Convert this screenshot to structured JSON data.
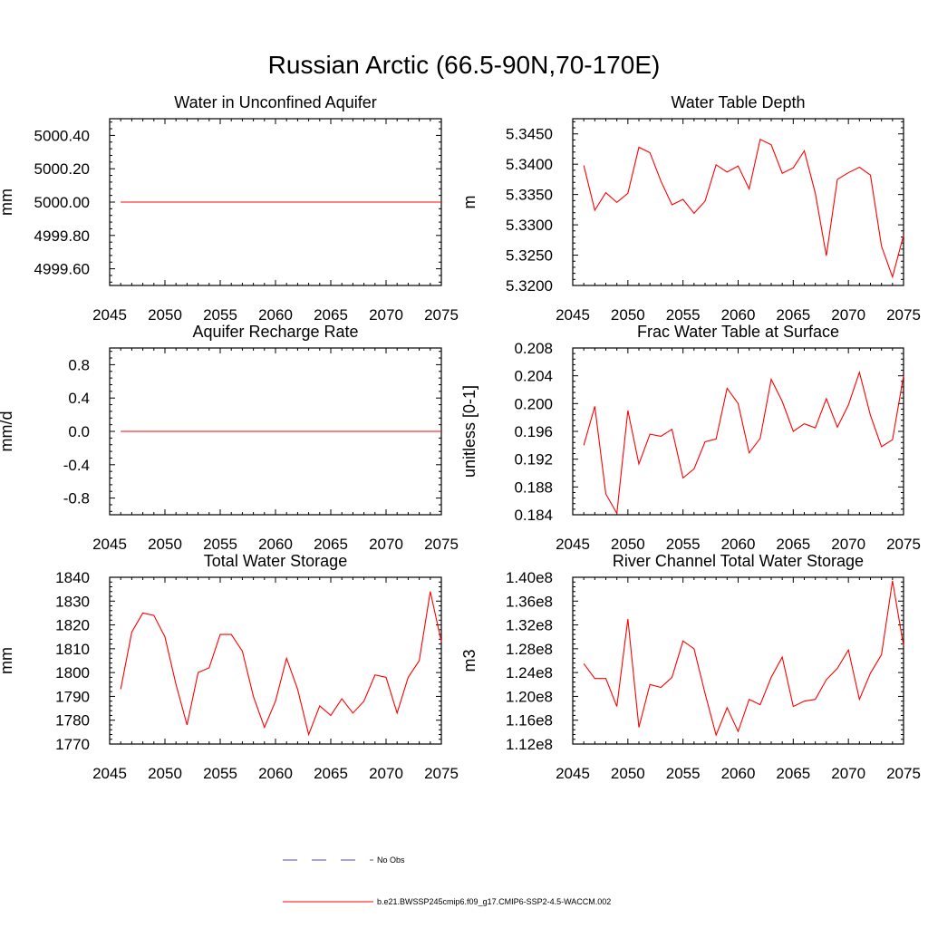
{
  "figure_title": "Russian Arctic (66.5-90N,70-170E)",
  "chart_data": [
    {
      "type": "line",
      "title": "Water in Unconfined Aquifer",
      "ylabel": "mm",
      "xlim": [
        2045,
        2075
      ],
      "ylim": [
        4999.5,
        5000.5
      ],
      "xticks": [
        2045,
        2050,
        2055,
        2060,
        2065,
        2070,
        2075
      ],
      "yticks": [
        4999.6,
        4999.8,
        5000.0,
        5000.2,
        5000.4
      ],
      "ytick_labels": [
        "4999.60",
        "4999.80",
        "5000.00",
        "5000.20",
        "5000.40"
      ],
      "x": [
        2046,
        2047,
        2048,
        2049,
        2050,
        2051,
        2052,
        2053,
        2054,
        2055,
        2056,
        2057,
        2058,
        2059,
        2060,
        2061,
        2062,
        2063,
        2064,
        2065,
        2066,
        2067,
        2068,
        2069,
        2070,
        2071,
        2072,
        2073,
        2074,
        2075
      ],
      "series": [
        {
          "name": "b.e21.BWSSP245cmip6.f09_g17.CMIP6-SSP2-4.5-WACCM.002",
          "color": "#ff0000",
          "values": [
            5000,
            5000,
            5000,
            5000,
            5000,
            5000,
            5000,
            5000,
            5000,
            5000,
            5000,
            5000,
            5000,
            5000,
            5000,
            5000,
            5000,
            5000,
            5000,
            5000,
            5000,
            5000,
            5000,
            5000,
            5000,
            5000,
            5000,
            5000,
            5000,
            5000
          ]
        }
      ]
    },
    {
      "type": "line",
      "title": "Water Table Depth",
      "ylabel": "m",
      "xlim": [
        2045,
        2075
      ],
      "ylim": [
        5.32,
        5.3475
      ],
      "xticks": [
        2045,
        2050,
        2055,
        2060,
        2065,
        2070,
        2075
      ],
      "yticks": [
        5.32,
        5.325,
        5.33,
        5.335,
        5.34,
        5.345
      ],
      "ytick_labels": [
        "5.3200",
        "5.3250",
        "5.3300",
        "5.3350",
        "5.3400",
        "5.3450"
      ],
      "x": [
        2046,
        2047,
        2048,
        2049,
        2050,
        2051,
        2052,
        2053,
        2054,
        2055,
        2056,
        2057,
        2058,
        2059,
        2060,
        2061,
        2062,
        2063,
        2064,
        2065,
        2066,
        2067,
        2068,
        2069,
        2070,
        2071,
        2072,
        2073,
        2074,
        2075
      ],
      "series": [
        {
          "name": "b.e21.BWSSP245cmip6.f09_g17.CMIP6-SSP2-4.5-WACCM.002",
          "color": "#ff0000",
          "values": [
            5.3398,
            5.3324,
            5.3353,
            5.3337,
            5.3352,
            5.3428,
            5.3419,
            5.3372,
            5.3333,
            5.3342,
            5.3319,
            5.3339,
            5.3399,
            5.3387,
            5.3397,
            5.3359,
            5.3441,
            5.3432,
            5.3385,
            5.3394,
            5.3422,
            5.3352,
            5.3249,
            5.3375,
            5.3386,
            5.3395,
            5.3382,
            5.3265,
            5.3214,
            5.3283
          ]
        }
      ]
    },
    {
      "type": "line",
      "title": "Aquifer Recharge Rate",
      "ylabel": "mm/d",
      "xlim": [
        2045,
        2075
      ],
      "ylim": [
        -1.0,
        1.0
      ],
      "xticks": [
        2045,
        2050,
        2055,
        2060,
        2065,
        2070,
        2075
      ],
      "yticks": [
        -0.8,
        -0.4,
        0.0,
        0.4,
        0.8
      ],
      "ytick_labels": [
        "-0.8",
        "-0.4",
        "0.0",
        "0.4",
        "0.8"
      ],
      "x": [
        2046,
        2047,
        2048,
        2049,
        2050,
        2051,
        2052,
        2053,
        2054,
        2055,
        2056,
        2057,
        2058,
        2059,
        2060,
        2061,
        2062,
        2063,
        2064,
        2065,
        2066,
        2067,
        2068,
        2069,
        2070,
        2071,
        2072,
        2073,
        2074,
        2075
      ],
      "series": [
        {
          "name": "b.e21.BWSSP245cmip6.f09_g17.CMIP6-SSP2-4.5-WACCM.002",
          "color": "#ff0000",
          "values": [
            0,
            0,
            0,
            0,
            0,
            0,
            0,
            0,
            0,
            0,
            0,
            0,
            0,
            0,
            0,
            0,
            0,
            0,
            0,
            0,
            0,
            0,
            0,
            0,
            0,
            0,
            0,
            0,
            0,
            0
          ]
        }
      ]
    },
    {
      "type": "line",
      "title": "Frac Water Table at Surface",
      "ylabel": "unitless [0-1]",
      "xlim": [
        2045,
        2075
      ],
      "ylim": [
        0.184,
        0.208
      ],
      "xticks": [
        2045,
        2050,
        2055,
        2060,
        2065,
        2070,
        2075
      ],
      "yticks": [
        0.184,
        0.188,
        0.192,
        0.196,
        0.2,
        0.204,
        0.208
      ],
      "ytick_labels": [
        "0.184",
        "0.188",
        "0.192",
        "0.196",
        "0.200",
        "0.204",
        "0.208"
      ],
      "x": [
        2046,
        2047,
        2048,
        2049,
        2050,
        2051,
        2052,
        2053,
        2054,
        2055,
        2056,
        2057,
        2058,
        2059,
        2060,
        2061,
        2062,
        2063,
        2064,
        2065,
        2066,
        2067,
        2068,
        2069,
        2070,
        2071,
        2072,
        2073,
        2074,
        2075
      ],
      "series": [
        {
          "name": "b.e21.BWSSP245cmip6.f09_g17.CMIP6-SSP2-4.5-WACCM.002",
          "color": "#ff0000",
          "values": [
            0.194,
            0.1996,
            0.187,
            0.1842,
            0.199,
            0.1913,
            0.1956,
            0.1953,
            0.1963,
            0.1893,
            0.1906,
            0.1945,
            0.1949,
            0.2022,
            0.2,
            0.1929,
            0.195,
            0.2035,
            0.2003,
            0.196,
            0.1971,
            0.1965,
            0.2007,
            0.1966,
            0.1998,
            0.2045,
            0.1983,
            0.1938,
            0.1948,
            0.204
          ]
        }
      ]
    },
    {
      "type": "line",
      "title": "Total Water Storage",
      "ylabel": "mm",
      "xlim": [
        2045,
        2075
      ],
      "ylim": [
        1770,
        1840
      ],
      "xticks": [
        2045,
        2050,
        2055,
        2060,
        2065,
        2070,
        2075
      ],
      "yticks": [
        1770,
        1780,
        1790,
        1800,
        1810,
        1820,
        1830,
        1840
      ],
      "ytick_labels": [
        "1770",
        "1780",
        "1790",
        "1800",
        "1810",
        "1820",
        "1830",
        "1840"
      ],
      "x": [
        2046,
        2047,
        2048,
        2049,
        2050,
        2051,
        2052,
        2053,
        2054,
        2055,
        2056,
        2057,
        2058,
        2059,
        2060,
        2061,
        2062,
        2063,
        2064,
        2065,
        2066,
        2067,
        2068,
        2069,
        2070,
        2071,
        2072,
        2073,
        2074,
        2075
      ],
      "series": [
        {
          "name": "b.e21.BWSSP245cmip6.f09_g17.CMIP6-SSP2-4.5-WACCM.002",
          "color": "#ff0000",
          "values": [
            1793,
            1817,
            1825,
            1824,
            1815,
            1795,
            1778,
            1800,
            1802,
            1816,
            1816,
            1809,
            1790,
            1777,
            1788,
            1806,
            1793,
            1774,
            1786,
            1782,
            1789,
            1783,
            1788,
            1799,
            1798,
            1783,
            1798,
            1805,
            1834,
            1813
          ]
        }
      ]
    },
    {
      "type": "line",
      "title": "River Channel Total Water Storage",
      "ylabel": "m3",
      "xlim": [
        2045,
        2075
      ],
      "ylim": [
        112000000,
        140000000
      ],
      "xticks": [
        2045,
        2050,
        2055,
        2060,
        2065,
        2070,
        2075
      ],
      "yticks": [
        112000000,
        116000000,
        120000000,
        124000000,
        128000000,
        132000000,
        136000000,
        140000000
      ],
      "ytick_labels": [
        "1.12e8",
        "1.16e8",
        "1.20e8",
        "1.24e8",
        "1.28e8",
        "1.32e8",
        "1.36e8",
        "1.40e8"
      ],
      "x": [
        2046,
        2047,
        2048,
        2049,
        2050,
        2051,
        2052,
        2053,
        2054,
        2055,
        2056,
        2057,
        2058,
        2059,
        2060,
        2061,
        2062,
        2063,
        2064,
        2065,
        2066,
        2067,
        2068,
        2069,
        2070,
        2071,
        2072,
        2073,
        2074,
        2075
      ],
      "series": [
        {
          "name": "b.e21.BWSSP245cmip6.f09_g17.CMIP6-SSP2-4.5-WACCM.002",
          "color": "#ff0000",
          "values": [
            125500000,
            123000000,
            123000000,
            118300000,
            133000000,
            114800000,
            122000000,
            121500000,
            123200000,
            129300000,
            128000000,
            120500000,
            113500000,
            118100000,
            114100000,
            119500000,
            118600000,
            123200000,
            126600000,
            118300000,
            119200000,
            119500000,
            122800000,
            124700000,
            127800000,
            119500000,
            123900000,
            127000000,
            139400000,
            128500000
          ]
        }
      ]
    }
  ],
  "legend": {
    "obs_label": "No Obs",
    "obs_color": "#4f4fa0",
    "model_label": "b.e21.BWSSP245cmip6.f09_g17.CMIP6-SSP2-4.5-WACCM.002",
    "model_color": "#ff0000"
  }
}
